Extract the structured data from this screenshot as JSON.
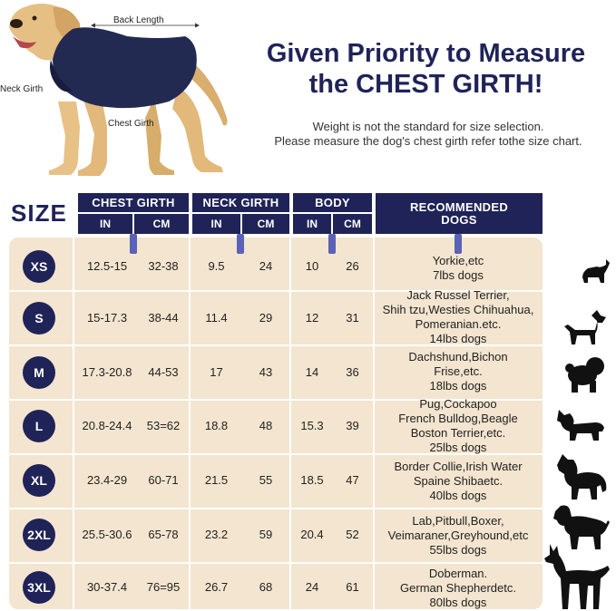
{
  "headline": {
    "line1": "Given Priority to Measure",
    "line2": "the CHEST GIRTH!"
  },
  "note": {
    "line1": "Weight is not the standard for size selection.",
    "line2": "Please measure the dog's chest girth refer tothe size chart."
  },
  "photo_labels": {
    "back_length": "Back Length",
    "neck_girth": "Neck Girth",
    "chest_girth": "Chest Girth"
  },
  "size_heading": "SIZE",
  "columns": {
    "chest": "CHEST GIRTH",
    "neck": "NECK GIRTH",
    "body": "BODY",
    "recommended_line1": "RECOMMENDED",
    "recommended_line2": "DOGS",
    "in": "IN",
    "cm": "CM"
  },
  "rows": [
    {
      "size": "XS",
      "chest_in": "12.5-15",
      "chest_cm": "32-38",
      "neck_in": "9.5",
      "neck_cm": "24",
      "body_in": "10",
      "body_cm": "26",
      "dogs": [
        "Yorkie,etc",
        "7lbs dogs"
      ]
    },
    {
      "size": "S",
      "chest_in": "15-17.3",
      "chest_cm": "38-44",
      "neck_in": "11.4",
      "neck_cm": "29",
      "body_in": "12",
      "body_cm": "31",
      "dogs": [
        "Jack Russel Terrier,",
        "Shih tzu,Westies Chihuahua,",
        "Pomeranian.etc.",
        "14lbs dogs"
      ]
    },
    {
      "size": "M",
      "chest_in": "17.3-20.8",
      "chest_cm": "44-53",
      "neck_in": "17",
      "neck_cm": "43",
      "body_in": "14",
      "body_cm": "36",
      "dogs": [
        "Dachshund,Bichon",
        "Frise,etc.",
        "18lbs dogs"
      ]
    },
    {
      "size": "L",
      "chest_in": "20.8-24.4",
      "chest_cm": "53=62",
      "neck_in": "18.8",
      "neck_cm": "48",
      "body_in": "15.3",
      "body_cm": "39",
      "dogs": [
        "Pug,Cockapoo",
        "French Bulldog,Beagle",
        "Boston Terrier,etc.",
        "25lbs dogs"
      ]
    },
    {
      "size": "XL",
      "chest_in": "23.4-29",
      "chest_cm": "60-71",
      "neck_in": "21.5",
      "neck_cm": "55",
      "body_in": "18.5",
      "body_cm": "47",
      "dogs": [
        "Border Collie,Irish Water",
        "Spaine Shibaetc.",
        "40lbs dogs"
      ]
    },
    {
      "size": "2XL",
      "chest_in": "25.5-30.6",
      "chest_cm": "65-78",
      "neck_in": "23.2",
      "neck_cm": "59",
      "body_in": "20.4",
      "body_cm": "52",
      "dogs": [
        "Lab,Pitbull,Boxer,",
        "Veimaraner,Greyhound,etc",
        "55lbs dogs"
      ]
    },
    {
      "size": "3XL",
      "chest_in": "30-37.4",
      "chest_cm": "76=95",
      "neck_in": "26.7",
      "neck_cm": "68",
      "body_in": "24",
      "body_cm": "61",
      "dogs": [
        "Doberman.",
        "German Shepherdetc.",
        "80lbs dogs"
      ]
    }
  ],
  "colors": {
    "navy": "#1f2358",
    "table_bg": "#f3e5cf",
    "marker": "#5a61b8",
    "silhouette": "#111111"
  },
  "icons": [
    "yorkie-silhouette-icon",
    "terrier-silhouette-icon",
    "bichon-silhouette-icon",
    "bulldog-silhouette-icon",
    "collie-silhouette-icon",
    "spaniel-silhouette-icon",
    "doberman-silhouette-icon"
  ]
}
